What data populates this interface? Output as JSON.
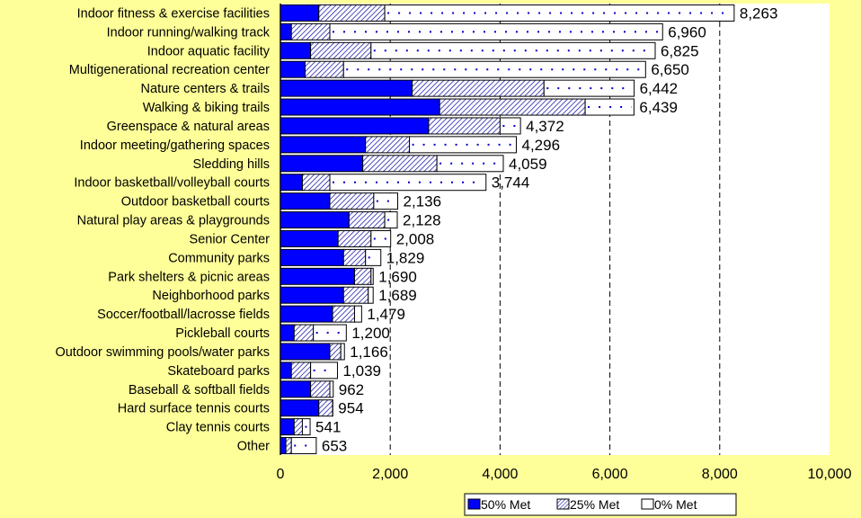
{
  "chart_data": {
    "type": "bar",
    "orientation": "horizontal",
    "stacked": true,
    "categories": [
      "Indoor fitness & exercise facilities",
      "Indoor running/walking track",
      "Indoor aquatic facility",
      "Multigenerational recreation center",
      "Nature centers & trails",
      "Walking & biking trails",
      "Greenspace & natural areas",
      "Indoor meeting/gathering spaces",
      "Sledding hills",
      "Indoor basketball/volleyball courts",
      "Outdoor basketball courts",
      "Natural play areas & playgrounds",
      "Senior Center",
      "Community parks",
      "Park shelters & picnic areas",
      "Neighborhood parks",
      "Soccer/football/lacrosse fields",
      "Pickleball courts",
      "Outdoor swimming pools/water parks",
      "Skateboard parks",
      "Baseball & softball fields",
      "Hard surface tennis courts",
      "Clay tennis courts",
      "Other"
    ],
    "series": [
      {
        "name": "50% Met",
        "color": "#0000FF",
        "pattern": "solid",
        "values": [
          700,
          200,
          550,
          450,
          2400,
          2900,
          2700,
          1550,
          1500,
          400,
          900,
          1250,
          1050,
          1150,
          1350,
          1150,
          950,
          250,
          900,
          200,
          550,
          700,
          250,
          100
        ]
      },
      {
        "name": "25% Met",
        "color": "#4444CC",
        "pattern": "hatch",
        "values": [
          1200,
          700,
          1100,
          700,
          2400,
          2650,
          1300,
          800,
          1350,
          500,
          800,
          650,
          600,
          400,
          300,
          450,
          400,
          350,
          200,
          350,
          350,
          250,
          150,
          100
        ]
      },
      {
        "name": "0% Met",
        "color": "#FFFFFF",
        "pattern": "dotted",
        "values": [
          6363,
          6060,
          5175,
          5500,
          1642,
          889,
          372,
          1946,
          1209,
          2844,
          436,
          228,
          358,
          279,
          40,
          89,
          129,
          600,
          66,
          489,
          62,
          4,
          141,
          453
        ]
      }
    ],
    "totals": [
      8263,
      6960,
      6825,
      6650,
      6442,
      6439,
      4372,
      4296,
      4059,
      3744,
      2136,
      2128,
      2008,
      1829,
      1690,
      1689,
      1479,
      1200,
      1166,
      1039,
      962,
      954,
      541,
      653
    ],
    "total_labels": [
      "8,263",
      "6,960",
      "6,825",
      "6,650",
      "6,442",
      "6,439",
      "4,372",
      "4,296",
      "4,059",
      "3,744",
      "2,136",
      "2,128",
      "2,008",
      "1,829",
      "1,690",
      "1,689",
      "1,479",
      "1,200",
      "1,166",
      "1,039",
      "962",
      "954",
      "541",
      "653"
    ],
    "xlim": [
      0,
      10000
    ],
    "xticks": [
      0,
      2000,
      4000,
      6000,
      8000,
      10000
    ],
    "xtick_labels": [
      "0",
      "2,000",
      "4,000",
      "6,000",
      "8,000",
      "10,000"
    ],
    "grid": "vertical dashed",
    "legend_position": "bottom-right",
    "title": "",
    "xlabel": "",
    "ylabel": ""
  }
}
